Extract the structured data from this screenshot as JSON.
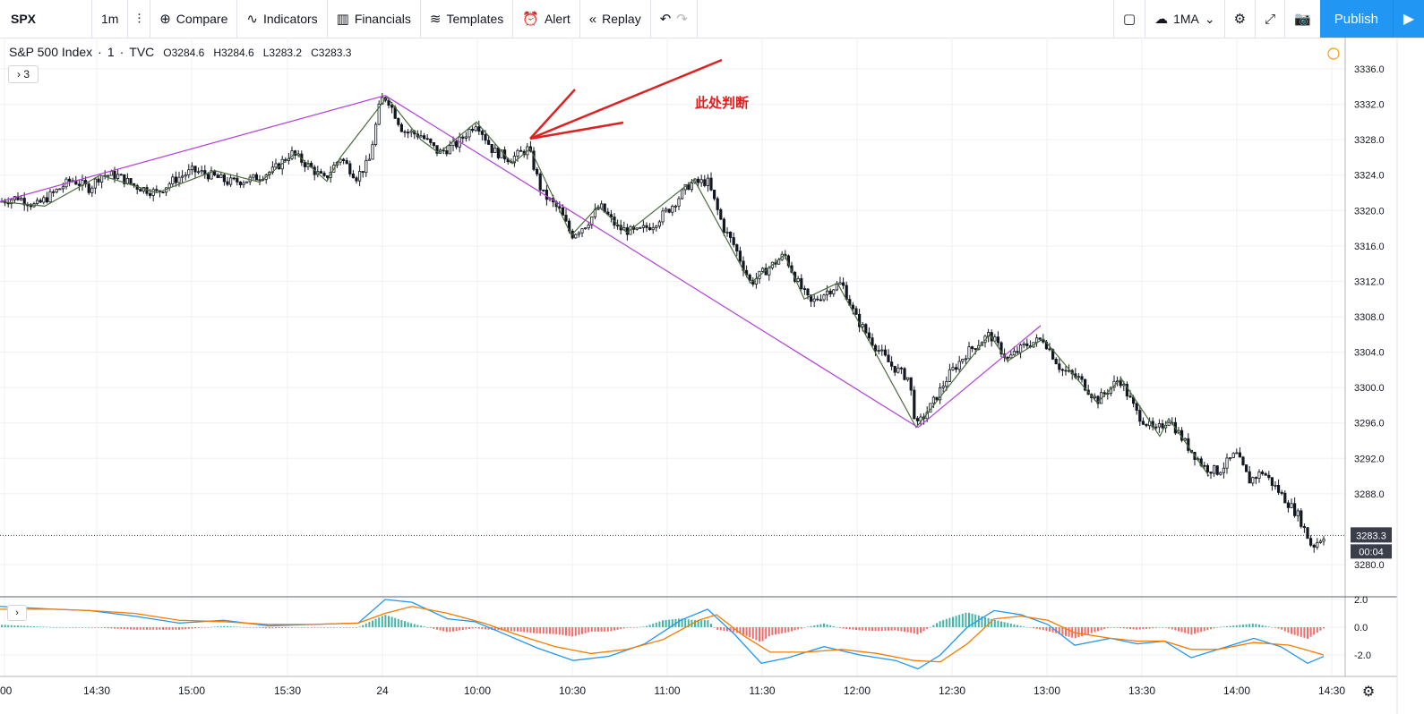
{
  "toolbar": {
    "symbol": "SPX",
    "interval": "1m",
    "compare": "Compare",
    "indicators": "Indicators",
    "financials": "Financials",
    "templates": "Templates",
    "alert": "Alert",
    "replay": "Replay",
    "layout_label": "1MA",
    "publish": "Publish"
  },
  "legend": {
    "title": "S&P 500 Index",
    "interval": "1",
    "source": "TVC",
    "open": "O3284.6",
    "high": "H3284.6",
    "low": "L3283.2",
    "close": "C3283.3",
    "collapsed_count": "3"
  },
  "annotation_text": "此处判断",
  "colors": {
    "candle": "#131722",
    "zigzag": "#4a6b3a",
    "trendline": "#b23ed8",
    "arrow": "#e02020",
    "macd_line": "#2196f3",
    "signal_line": "#f57c00",
    "hist_pos": "#26a69a",
    "hist_neg": "#ef5350"
  },
  "chart_data": {
    "type": "candlestick",
    "y_axis_labels": [
      "3336.0",
      "3332.0",
      "3328.0",
      "3324.0",
      "3320.0",
      "3316.0",
      "3312.0",
      "3308.0",
      "3304.0",
      "3300.0",
      "3296.0",
      "3292.0",
      "3288.0",
      "3280.0"
    ],
    "ylim": [
      3277,
      3338
    ],
    "x_axis_labels": [
      ":00",
      "14:30",
      "15:00",
      "15:30",
      "24",
      "10:00",
      "10:30",
      "11:00",
      "11:30",
      "12:00",
      "12:30",
      "13:00",
      "13:30",
      "14:00",
      "14:30"
    ],
    "last_price": "3283.3",
    "countdown": "00:04",
    "price_path": [
      [
        0,
        3321
      ],
      [
        20,
        3321.5
      ],
      [
        40,
        3320.5
      ],
      [
        60,
        3322
      ],
      [
        80,
        3323.5
      ],
      [
        100,
        3322.5
      ],
      [
        112,
        3324
      ],
      [
        130,
        3324
      ],
      [
        150,
        3322.8
      ],
      [
        175,
        3322
      ],
      [
        195,
        3323.5
      ],
      [
        215,
        3324.5
      ],
      [
        235,
        3324
      ],
      [
        255,
        3323.2
      ],
      [
        280,
        3323.5
      ],
      [
        305,
        3324.5
      ],
      [
        325,
        3326.5
      ],
      [
        345,
        3325
      ],
      [
        362,
        3323.5
      ],
      [
        380,
        3326
      ],
      [
        398,
        3323.8
      ],
      [
        412,
        3325.5
      ],
      [
        425,
        3332.5
      ],
      [
        432,
        3332.8
      ],
      [
        450,
        3329
      ],
      [
        470,
        3328.5
      ],
      [
        490,
        3326.5
      ],
      [
        510,
        3327.5
      ],
      [
        532,
        3330
      ],
      [
        550,
        3326.8
      ],
      [
        570,
        3325.8
      ],
      [
        590,
        3327
      ],
      [
        605,
        3322
      ],
      [
        625,
        3320
      ],
      [
        638,
        3317.2
      ],
      [
        655,
        3318.5
      ],
      [
        670,
        3320.5
      ],
      [
        690,
        3318
      ],
      [
        710,
        3317.5
      ],
      [
        730,
        3318.5
      ],
      [
        750,
        3320.5
      ],
      [
        770,
        3323
      ],
      [
        790,
        3323.3
      ],
      [
        808,
        3318
      ],
      [
        820,
        3316
      ],
      [
        838,
        3311.8
      ],
      [
        858,
        3313.5
      ],
      [
        876,
        3315
      ],
      [
        890,
        3312
      ],
      [
        905,
        3309.5
      ],
      [
        925,
        3311
      ],
      [
        940,
        3311.8
      ],
      [
        955,
        3308
      ],
      [
        975,
        3305
      ],
      [
        995,
        3302.5
      ],
      [
        1015,
        3301
      ],
      [
        1023,
        3295.5
      ],
      [
        1040,
        3298
      ],
      [
        1060,
        3301.5
      ],
      [
        1080,
        3304
      ],
      [
        1105,
        3306
      ],
      [
        1125,
        3303.2
      ],
      [
        1145,
        3304.8
      ],
      [
        1165,
        3305.5
      ],
      [
        1185,
        3302
      ],
      [
        1205,
        3301
      ],
      [
        1225,
        3298.5
      ],
      [
        1250,
        3301
      ],
      [
        1270,
        3297
      ],
      [
        1290,
        3295
      ],
      [
        1305,
        3296.5
      ],
      [
        1325,
        3293.5
      ],
      [
        1345,
        3291
      ],
      [
        1360,
        3290.5
      ],
      [
        1380,
        3292.5
      ],
      [
        1395,
        3289.5
      ],
      [
        1410,
        3290.5
      ],
      [
        1430,
        3288
      ],
      [
        1450,
        3285.5
      ],
      [
        1465,
        3282
      ],
      [
        1478,
        3283.3
      ]
    ],
    "zigzag": [
      [
        0,
        3321
      ],
      [
        50,
        3320.5
      ],
      [
        112,
        3324
      ],
      [
        175,
        3322
      ],
      [
        240,
        3324.5
      ],
      [
        290,
        3323.2
      ],
      [
        330,
        3326.5
      ],
      [
        365,
        3323.3
      ],
      [
        380,
        3326
      ],
      [
        432,
        3332.8
      ],
      [
        470,
        3328
      ],
      [
        490,
        3326.5
      ],
      [
        532,
        3330
      ],
      [
        572,
        3325.3
      ],
      [
        592,
        3327
      ],
      [
        638,
        3317.2
      ],
      [
        668,
        3320.5
      ],
      [
        700,
        3317.5
      ],
      [
        775,
        3323.5
      ],
      [
        838,
        3311.8
      ],
      [
        876,
        3315
      ],
      [
        898,
        3310
      ],
      [
        935,
        3311.8
      ],
      [
        1023,
        3295.5
      ],
      [
        1105,
        3306
      ],
      [
        1125,
        3303
      ],
      [
        1165,
        3305.5
      ],
      [
        1225,
        3298.3
      ],
      [
        1252,
        3301
      ],
      [
        1295,
        3294.5
      ],
      [
        1305,
        3296.5
      ],
      [
        1350,
        3290
      ]
    ],
    "trendlines": [
      [
        [
          0,
          3321
        ],
        [
          430,
          3333
        ]
      ],
      [
        [
          430,
          3333
        ],
        [
          1025,
          3295.5
        ]
      ],
      [
        [
          1025,
          3295.5
        ],
        [
          1162,
          3307
        ]
      ]
    ],
    "macd": {
      "y_axis_labels": [
        "2.0",
        "0.0",
        "-2.0"
      ],
      "ylim": [
        -3.5,
        3
      ],
      "macd_line": [
        [
          0,
          1.5
        ],
        [
          60,
          1.3
        ],
        [
          100,
          1.2
        ],
        [
          150,
          0.8
        ],
        [
          200,
          0.3
        ],
        [
          250,
          0.5
        ],
        [
          300,
          0.1
        ],
        [
          350,
          0.2
        ],
        [
          400,
          0.3
        ],
        [
          430,
          2.0
        ],
        [
          460,
          1.8
        ],
        [
          500,
          0.6
        ],
        [
          530,
          0.4
        ],
        [
          560,
          -0.4
        ],
        [
          600,
          -1.5
        ],
        [
          640,
          -2.4
        ],
        [
          680,
          -2.1
        ],
        [
          720,
          -1.2
        ],
        [
          760,
          0.5
        ],
        [
          790,
          1.3
        ],
        [
          820,
          -0.5
        ],
        [
          850,
          -2.6
        ],
        [
          880,
          -2.2
        ],
        [
          920,
          -1.4
        ],
        [
          960,
          -2.0
        ],
        [
          1000,
          -2.4
        ],
        [
          1025,
          -3.0
        ],
        [
          1050,
          -2.0
        ],
        [
          1080,
          0.0
        ],
        [
          1110,
          1.2
        ],
        [
          1140,
          0.9
        ],
        [
          1170,
          0.2
        ],
        [
          1200,
          -1.3
        ],
        [
          1240,
          -0.8
        ],
        [
          1270,
          -1.2
        ],
        [
          1300,
          -1.0
        ],
        [
          1330,
          -2.2
        ],
        [
          1360,
          -1.6
        ],
        [
          1400,
          -0.8
        ],
        [
          1430,
          -1.4
        ],
        [
          1460,
          -2.6
        ],
        [
          1478,
          -2.1
        ]
      ],
      "signal_line": [
        [
          0,
          1.3
        ],
        [
          60,
          1.3
        ],
        [
          100,
          1.2
        ],
        [
          150,
          1.0
        ],
        [
          200,
          0.5
        ],
        [
          250,
          0.4
        ],
        [
          300,
          0.2
        ],
        [
          350,
          0.2
        ],
        [
          400,
          0.3
        ],
        [
          430,
          1.0
        ],
        [
          460,
          1.5
        ],
        [
          500,
          1.0
        ],
        [
          540,
          0.3
        ],
        [
          580,
          -0.6
        ],
        [
          620,
          -1.4
        ],
        [
          660,
          -1.9
        ],
        [
          700,
          -1.6
        ],
        [
          740,
          -0.9
        ],
        [
          780,
          0.5
        ],
        [
          800,
          0.9
        ],
        [
          830,
          -0.6
        ],
        [
          860,
          -1.8
        ],
        [
          900,
          -1.8
        ],
        [
          940,
          -1.6
        ],
        [
          980,
          -1.9
        ],
        [
          1020,
          -2.4
        ],
        [
          1050,
          -2.5
        ],
        [
          1080,
          -1.2
        ],
        [
          1110,
          0.6
        ],
        [
          1140,
          0.8
        ],
        [
          1170,
          0.5
        ],
        [
          1200,
          -0.4
        ],
        [
          1240,
          -0.8
        ],
        [
          1270,
          -1.0
        ],
        [
          1300,
          -1.0
        ],
        [
          1330,
          -1.6
        ],
        [
          1360,
          -1.6
        ],
        [
          1400,
          -1.1
        ],
        [
          1440,
          -1.3
        ],
        [
          1478,
          -2.0
        ]
      ]
    }
  }
}
